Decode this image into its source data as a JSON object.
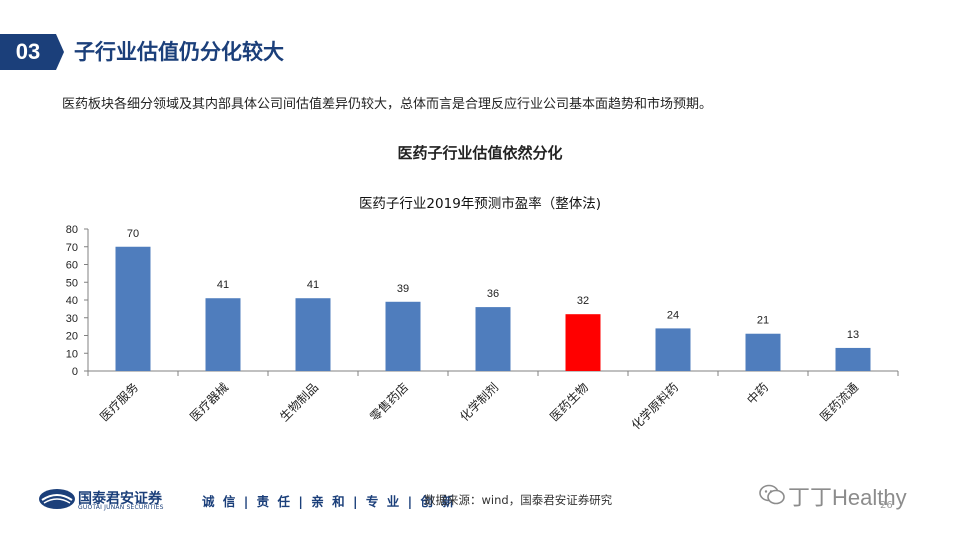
{
  "section": {
    "number": "03",
    "title": "子行业估值仍分化较大"
  },
  "subtitle": "医药板块各细分领域及其内部具体公司间估值差异仍较大，总体而言是合理反应行业公司基本面趋势和市场预期。",
  "chart_heading": "医药子行业估值依然分化",
  "chart_data": {
    "type": "bar",
    "title": "医药子行业2019年预测市盈率（整体法)",
    "categories": [
      "医疗服务",
      "医疗器械",
      "生物制品",
      "零售药店",
      "化学制剂",
      "医药生物",
      "化学原料药",
      "中药",
      "医药流通"
    ],
    "values": [
      70,
      41,
      41,
      39,
      36,
      32,
      24,
      21,
      13
    ],
    "data_labels": [
      "70",
      "41",
      "41",
      "39",
      "36",
      "32",
      "24",
      "21",
      "13"
    ],
    "highlight_index": 5,
    "colors": {
      "bar": "#4f7dbd",
      "highlight": "#ff0000"
    },
    "ylim": [
      0,
      80
    ],
    "yticks": [
      0,
      10,
      20,
      30,
      40,
      50,
      60,
      70,
      80
    ],
    "xlabel": "",
    "ylabel": "",
    "grid": false,
    "legend": "none"
  },
  "footer": {
    "company": "国泰君安证券",
    "company_en": "GUOTAI JUNAN SECURITIES",
    "slogan": "诚 信 | 责 任 | 亲 和 | 专 业 | 创 新",
    "source": "数据来源：wind，国泰君安证券研究",
    "watermark": "丁丁Healthy",
    "page": "26"
  },
  "colors": {
    "brand": "#1b3f7a",
    "text": "#222222"
  }
}
